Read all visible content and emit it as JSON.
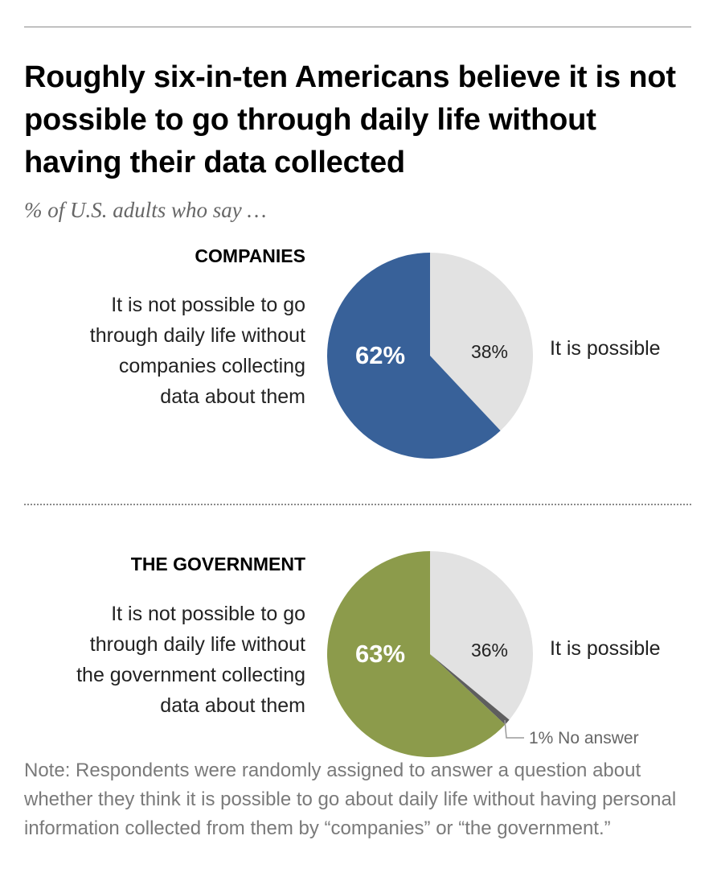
{
  "title": "Roughly six-in-ten Americans believe it is not possible to go through daily life without having their data collected",
  "subtitle": "% of U.S. adults who say …",
  "note": "Note: Respondents were randomly assigned to answer a question about whether they think it is possible to go about daily life without having personal information collected from them by “companies” or “the government.”",
  "colors": {
    "companies": "#386199",
    "government": "#8c9b4b",
    "possible": "#e2e2e2",
    "no_answer": "#5e5e5e"
  },
  "chart_data": [
    {
      "type": "pie",
      "title": "COMPANIES",
      "slices": [
        {
          "label": "It is not possible to go through daily life without companies collecting data about them",
          "value": 62,
          "display": "62%"
        },
        {
          "label": "It is possible",
          "value": 38,
          "display": "38%"
        }
      ],
      "description_lines": [
        "It is not possible to go",
        "through daily life without",
        "companies collecting",
        "data about them"
      ],
      "possible_label": "It is possible"
    },
    {
      "type": "pie",
      "title": "THE GOVERNMENT",
      "slices": [
        {
          "label": "It is not possible to go through daily life without the government collecting data about them",
          "value": 63,
          "display": "63%"
        },
        {
          "label": "It is possible",
          "value": 36,
          "display": "36%"
        },
        {
          "label": "No answer",
          "value": 1,
          "display": "1% No answer"
        }
      ],
      "description_lines": [
        "It is not possible to go",
        "through daily life without",
        "the government collecting",
        "data about them"
      ],
      "possible_label": "It is possible"
    }
  ]
}
